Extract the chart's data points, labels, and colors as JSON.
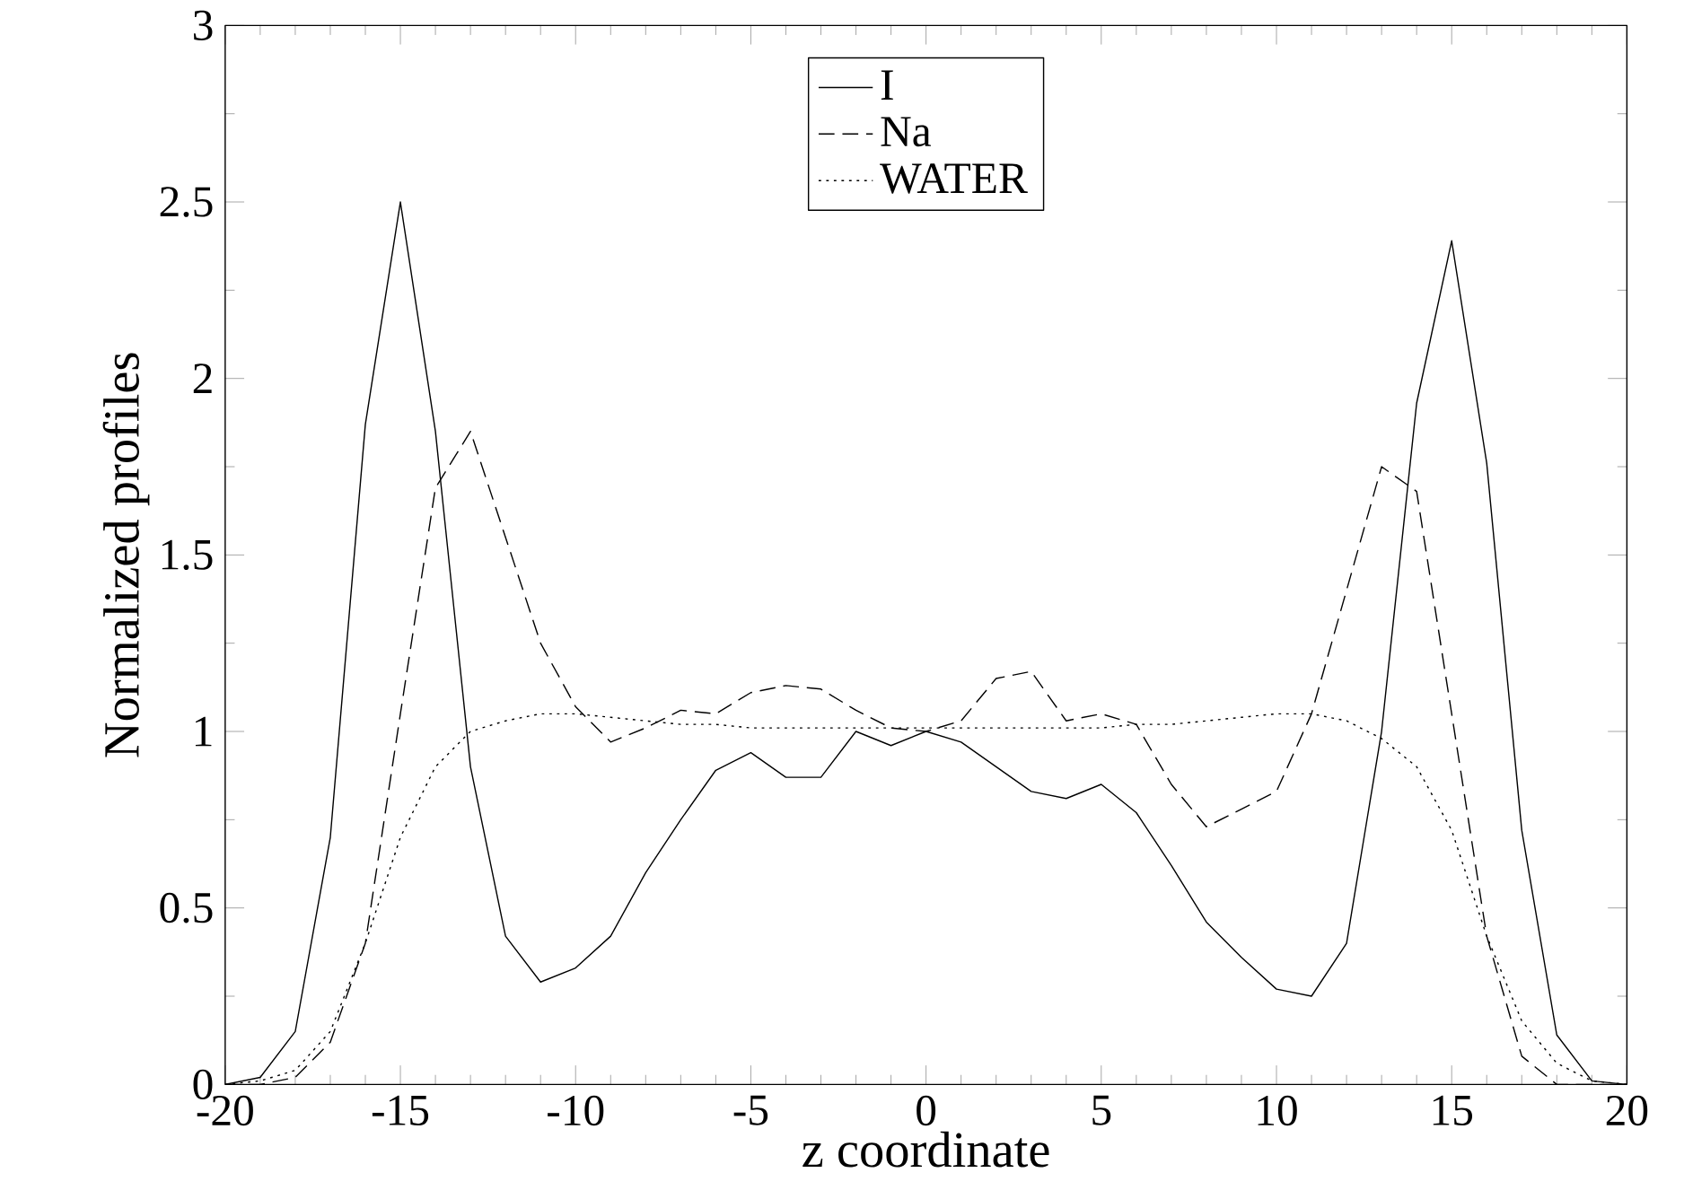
{
  "chart_data": {
    "type": "line",
    "xlabel": "z coordinate",
    "ylabel": "Normalized profiles",
    "x": [
      -20,
      -19,
      -18,
      -17,
      -16,
      -15,
      -14,
      -13,
      -12,
      -11,
      -10,
      -9,
      -8,
      -7,
      -6,
      -5,
      -4,
      -3,
      -2,
      -1,
      0,
      1,
      2,
      3,
      4,
      5,
      6,
      7,
      8,
      9,
      10,
      11,
      12,
      13,
      14,
      15,
      16,
      17,
      18,
      19,
      20
    ],
    "series": [
      {
        "name": "I",
        "color": "#000000",
        "line_style": "solid",
        "values": [
          0,
          0.02,
          0.15,
          0.7,
          1.87,
          2.5,
          1.85,
          0.9,
          0.42,
          0.29,
          0.33,
          0.42,
          0.6,
          0.75,
          0.89,
          0.94,
          0.87,
          0.87,
          1.0,
          0.96,
          1.0,
          0.97,
          0.9,
          0.83,
          0.81,
          0.85,
          0.77,
          0.62,
          0.46,
          0.36,
          0.27,
          0.25,
          0.4,
          1.0,
          1.93,
          2.39,
          1.76,
          0.72,
          0.14,
          0.01,
          0
        ]
      },
      {
        "name": "Na",
        "color": "#000000",
        "line_style": "dashed",
        "values": [
          0,
          0,
          0.02,
          0.12,
          0.4,
          1.05,
          1.69,
          1.85,
          1.55,
          1.25,
          1.07,
          0.97,
          1.01,
          1.06,
          1.05,
          1.11,
          1.13,
          1.12,
          1.06,
          1.01,
          1.0,
          1.03,
          1.15,
          1.17,
          1.03,
          1.05,
          1.02,
          0.85,
          0.73,
          0.78,
          0.83,
          1.05,
          1.4,
          1.75,
          1.68,
          1.05,
          0.42,
          0.08,
          0.0,
          0,
          0
        ]
      },
      {
        "name": "WATER",
        "color": "#000000",
        "line_style": "dotted",
        "values": [
          0,
          0.01,
          0.04,
          0.15,
          0.4,
          0.7,
          0.9,
          1.0,
          1.03,
          1.05,
          1.05,
          1.04,
          1.03,
          1.02,
          1.02,
          1.01,
          1.01,
          1.01,
          1.01,
          1.01,
          1.01,
          1.01,
          1.01,
          1.01,
          1.01,
          1.01,
          1.02,
          1.02,
          1.03,
          1.04,
          1.05,
          1.05,
          1.03,
          0.98,
          0.9,
          0.72,
          0.42,
          0.18,
          0.06,
          0.01,
          0
        ]
      }
    ],
    "xlim": [
      -20,
      20
    ],
    "xticks": [
      -20,
      -15,
      -10,
      -5,
      0,
      5,
      10,
      15,
      20
    ],
    "ylim": [
      0,
      3
    ],
    "yticks": [
      0,
      0.5,
      1,
      1.5,
      2,
      2.5,
      3
    ],
    "grid": false,
    "legend": "top"
  }
}
